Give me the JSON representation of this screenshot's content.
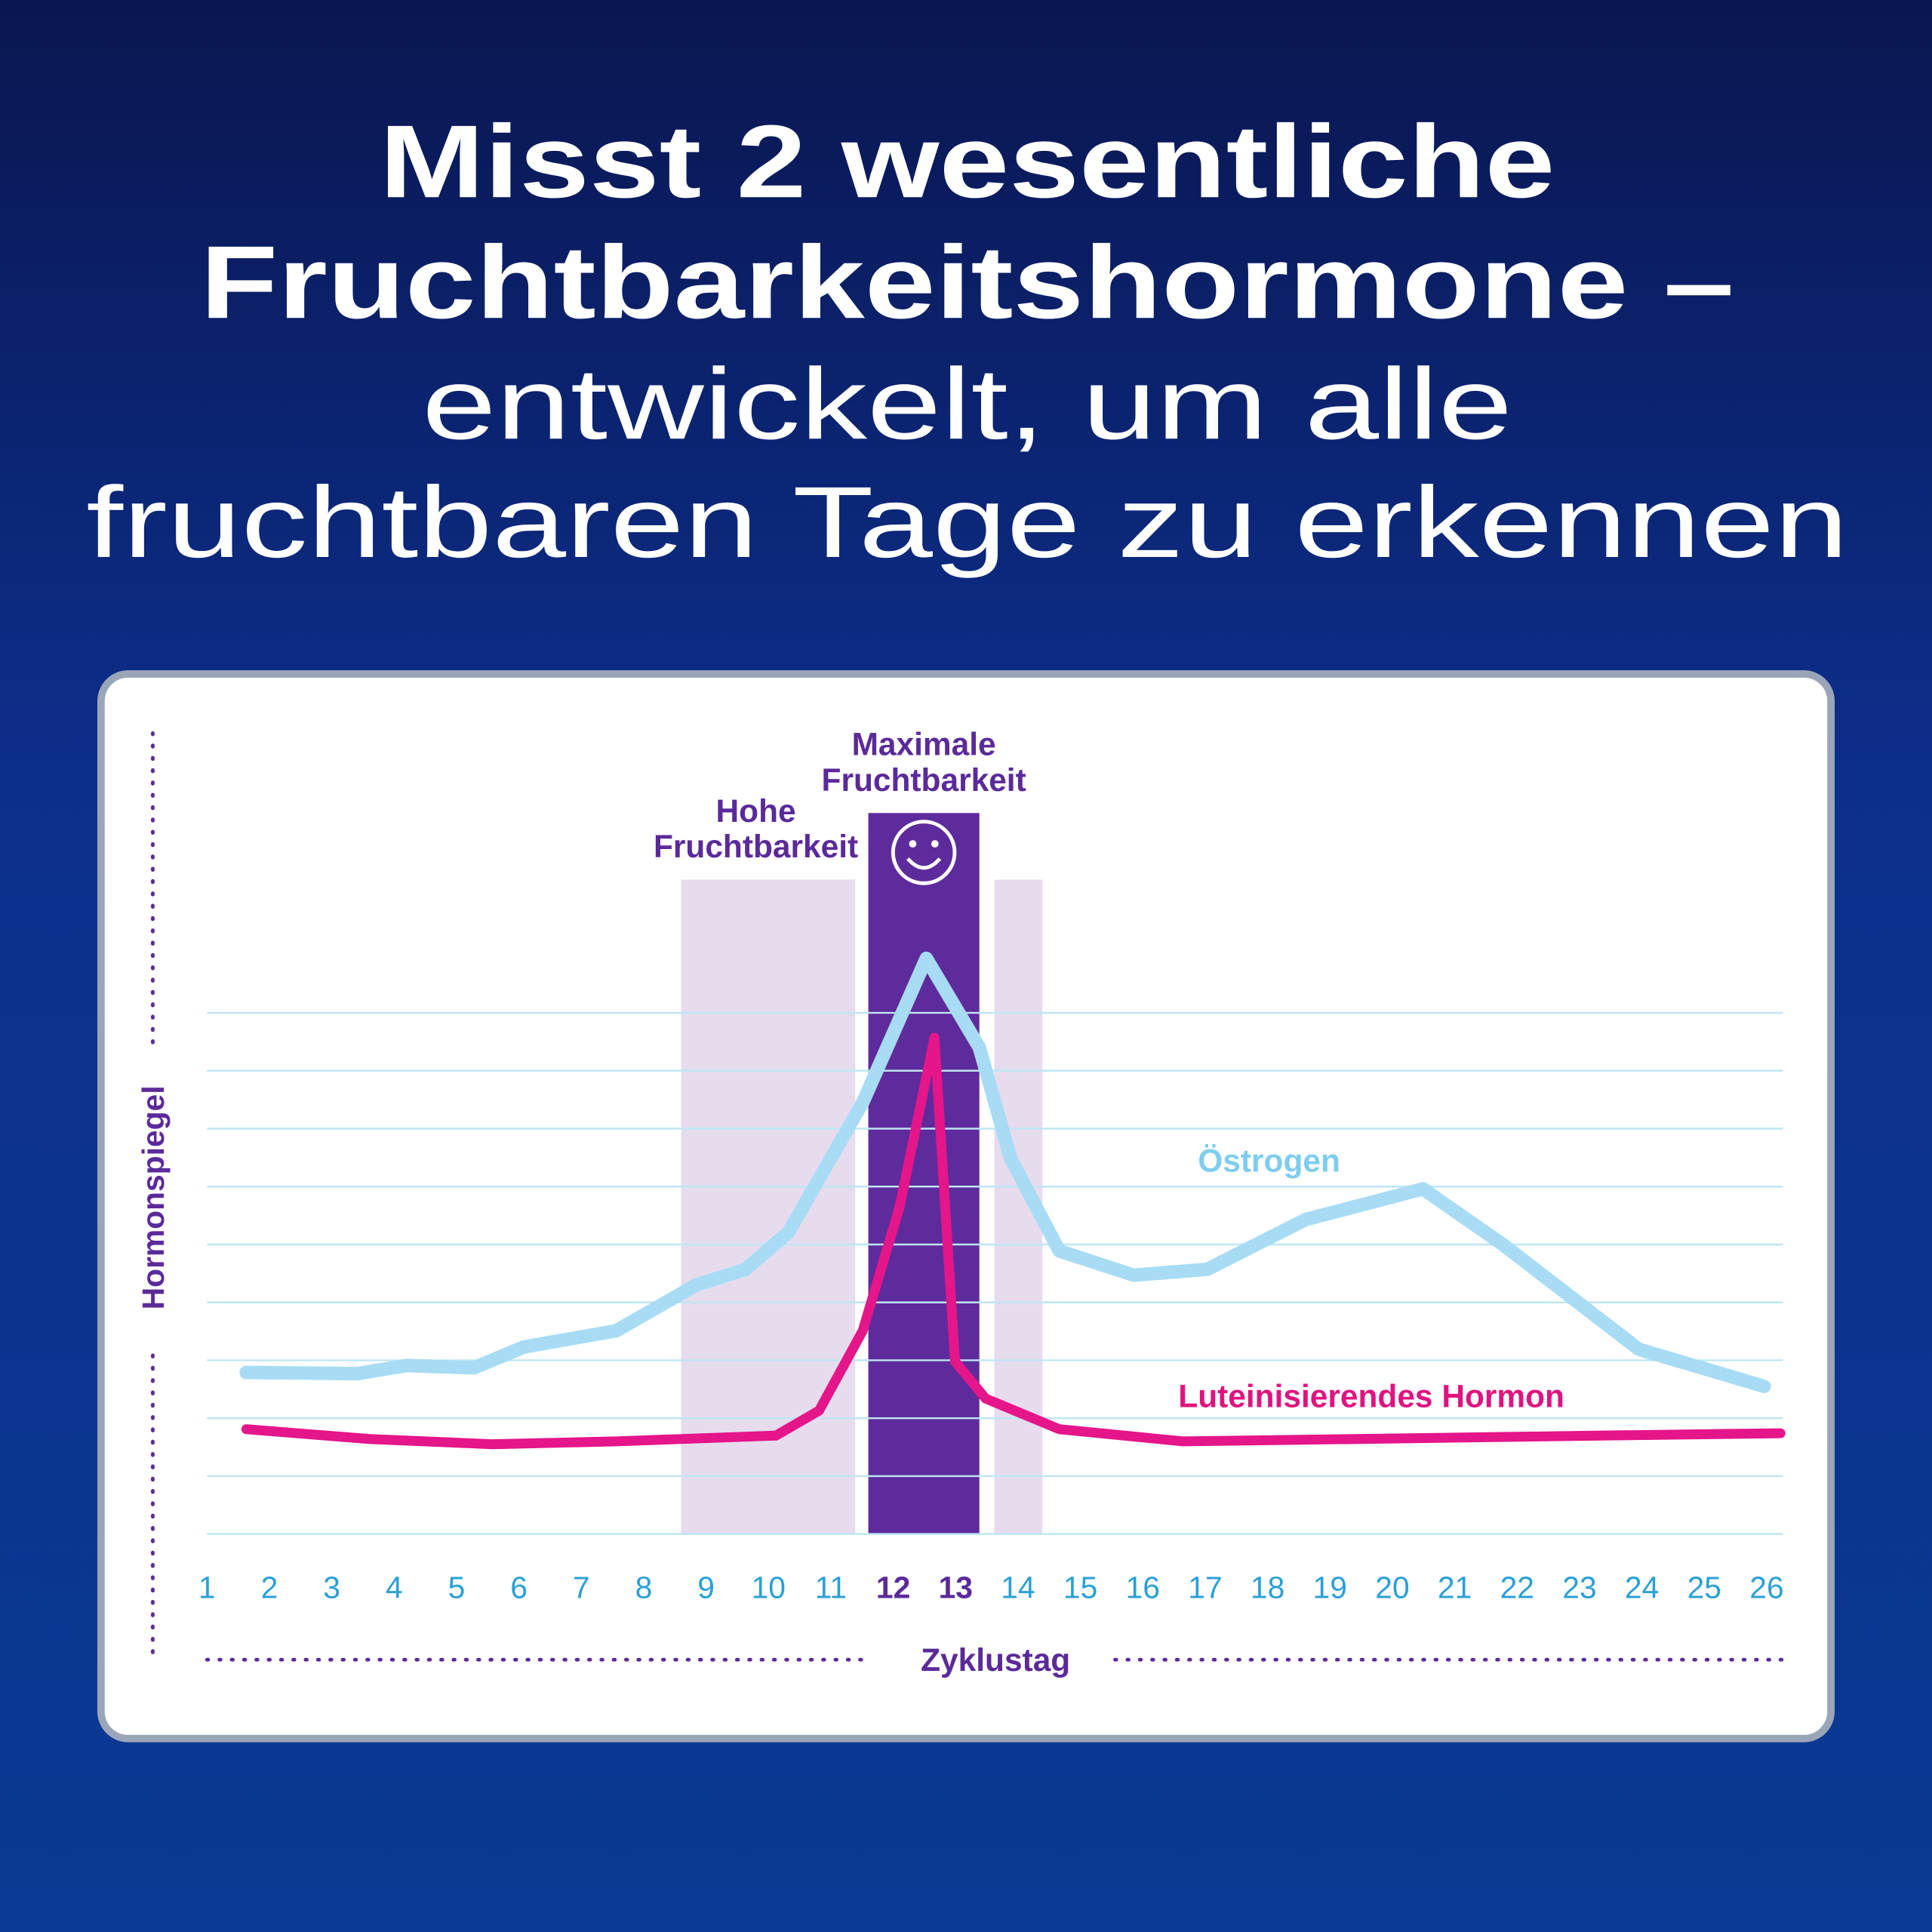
{
  "chart_data": {
    "type": "line",
    "title": [
      "Misst 2 wesentliche",
      "Fruchtbarkeitshormone –"
    ],
    "subtitle": [
      "entwickelt, um alle",
      "fruchtbaren Tage zu erkennen"
    ],
    "y_label": "Hormonspiegel",
    "x_label": "Zyklustag",
    "xlim": [
      1,
      26.26
    ],
    "xticks": [
      1,
      2,
      3,
      4,
      5,
      6,
      7,
      8,
      9,
      10,
      11,
      12,
      13,
      14,
      15,
      16,
      17,
      18,
      19,
      20,
      21,
      22,
      23,
      24,
      25,
      26
    ],
    "highlight_xticks": [
      12,
      13
    ],
    "ylim": [
      0,
      14
    ],
    "yticks": [
      0,
      1,
      2,
      3,
      4,
      5,
      6,
      7,
      8,
      9
    ],
    "grid": true,
    "bands": [
      {
        "from": 8.6,
        "to": 11.39,
        "top": 11.3,
        "color": "#e6dcee",
        "label": [
          "Hohe",
          "Fruchtbarkeit"
        ]
      },
      {
        "from": 11.6,
        "to": 13.38,
        "top": 12.45,
        "color": "#5e2b9c",
        "label": [
          "Maximale",
          "Fruchtbarkeit"
        ]
      },
      {
        "from": 13.62,
        "to": 14.39,
        "top": 11.3,
        "color": "#e6dcee"
      }
    ],
    "series": [
      {
        "name": "Östrogen",
        "color": "#a8dcf5",
        "label_color": "#7fcdee",
        "x": [
          1.63,
          3.41,
          4.2,
          5.28,
          6.08,
          7.56,
          8.84,
          9.63,
          10.32,
          11.51,
          12.53,
          13.38,
          13.88,
          14.66,
          15.85,
          17.03,
          18.61,
          20.49,
          21.77,
          23.95,
          25.96
        ],
        "values": [
          2.79,
          2.77,
          2.91,
          2.87,
          3.23,
          3.51,
          4.3,
          4.57,
          5.21,
          7.45,
          9.94,
          8.4,
          6.49,
          4.89,
          4.47,
          4.57,
          5.43,
          5.96,
          5.0,
          3.19,
          2.55
        ]
      },
      {
        "name": "Luteinisierendes Hormon",
        "color": "#e5158a",
        "label_color": "#e0137f",
        "x": [
          1.63,
          3.61,
          5.58,
          7.56,
          10.12,
          10.81,
          11.51,
          12.1,
          12.66,
          12.99,
          13.48,
          14.66,
          16.64,
          19.4,
          23.35,
          26.22
        ],
        "values": [
          1.81,
          1.64,
          1.55,
          1.6,
          1.7,
          2.13,
          3.51,
          5.64,
          8.57,
          2.98,
          2.34,
          1.81,
          1.6,
          1.64,
          1.7,
          1.74
        ]
      }
    ]
  }
}
